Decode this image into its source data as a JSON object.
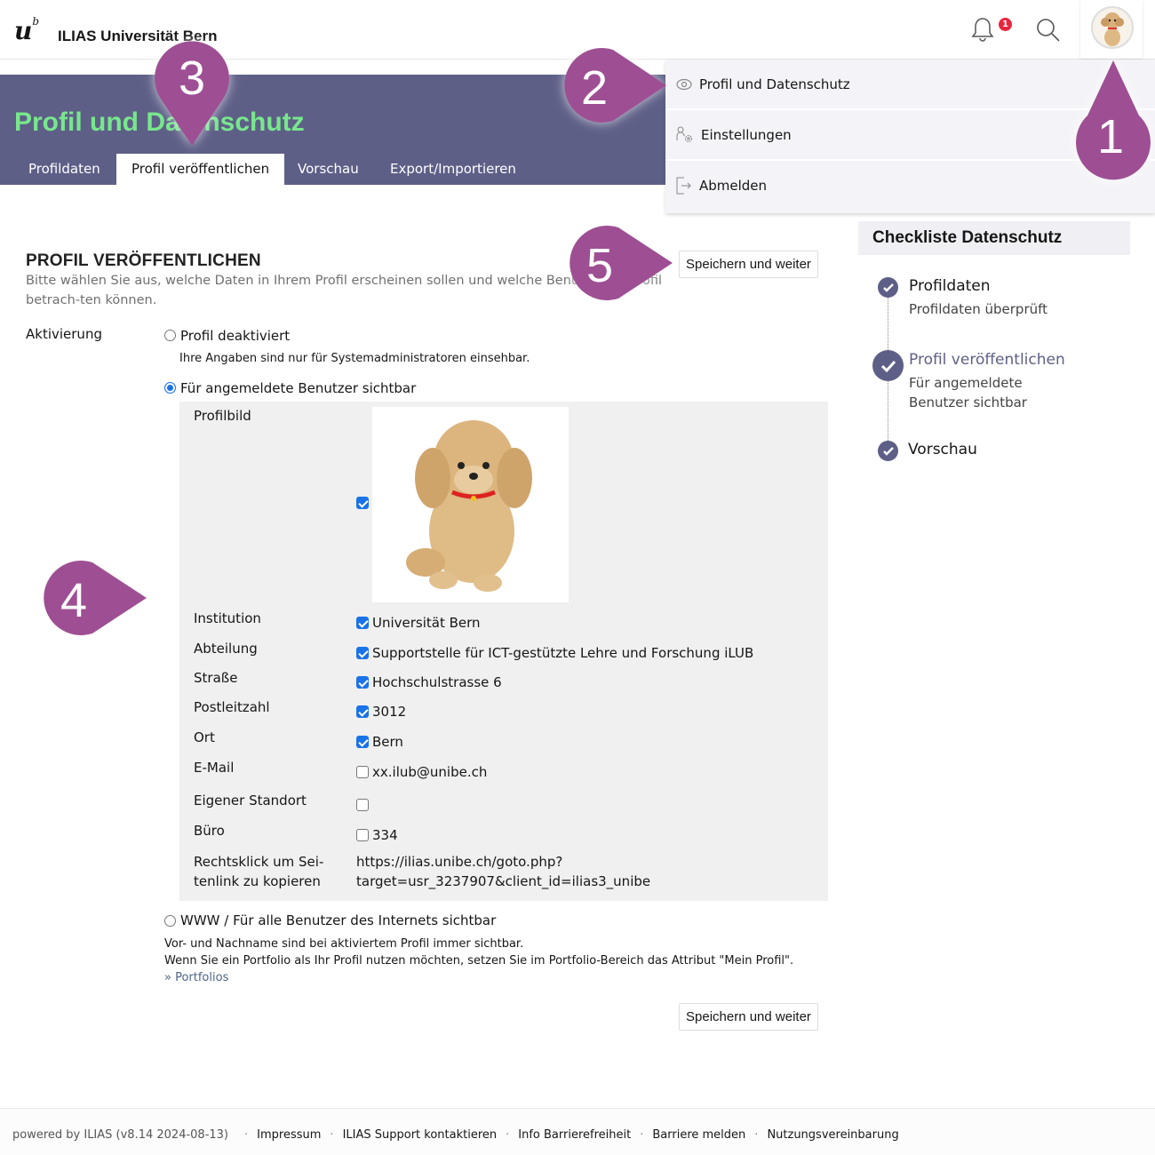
{
  "header": {
    "logo": "u",
    "logo_sup": "b",
    "site_title": "ILIAS Universität Bern",
    "notification_count": "1",
    "icons": [
      "bell-icon",
      "search-icon",
      "avatar"
    ]
  },
  "banner": {
    "title": "Profil und Datenschutz",
    "tabs": [
      {
        "label": "Profildaten"
      },
      {
        "label": "Profil veröffentlichen",
        "active": true
      },
      {
        "label": "Vorschau"
      },
      {
        "label": "Export/Importieren"
      }
    ]
  },
  "user_menu": {
    "items": [
      {
        "label": "Profil und Datenschutz",
        "icon": "eye-icon"
      },
      {
        "label": "Einstellungen",
        "icon": "user-settings-icon"
      },
      {
        "label": "Abmelden",
        "icon": "logout-icon"
      }
    ]
  },
  "form": {
    "title": "PROFIL VERÖFFENTLICHEN",
    "description": "Bitte wählen Sie aus, welche Daten in Ihrem Profil erscheinen sollen und welche Benutzer Ihr Profil betrach-ten können.",
    "save_label": "Speichern und weiter",
    "activation_label": "Aktivierung",
    "options": [
      {
        "label": "Profil deaktiviert",
        "info": "Ihre Angaben sind nur für Systemadministratoren einsehbar.",
        "selected": false
      },
      {
        "label": "Für angemeldete Benutzer sichtbar",
        "selected": true
      },
      {
        "label": "WWW / Für alle Benutzer des Internets sichtbar",
        "info": "Vor- und Nachname sind bei aktiviertem Profil immer sichtbar.",
        "info2": "Wenn Sie ein Portfolio als Ihr Profil nutzen möchten, setzen Sie im Portfolio-Bereich das Attribut \"Mein Profil\".",
        "link": "» Portfolios",
        "selected": false
      }
    ],
    "fields": [
      {
        "label": "Profilbild",
        "value": "",
        "checked": true
      },
      {
        "label": "Institution",
        "value": "Universität Bern",
        "checked": true
      },
      {
        "label": "Abteilung",
        "value": "Supportstelle für ICT-gestützte Lehre und Forschung iLUB",
        "checked": true
      },
      {
        "label": "Straße",
        "value": "Hochschulstrasse 6",
        "checked": true
      },
      {
        "label": "Postleitzahl",
        "value": "3012",
        "checked": true
      },
      {
        "label": "Ort",
        "value": "Bern",
        "checked": true
      },
      {
        "label": "E-Mail",
        "value": "xx.ilub@unibe.ch",
        "checked": false
      },
      {
        "label": "Eigener Standort",
        "value": "",
        "checked": false
      },
      {
        "label": "Büro",
        "value": "334",
        "checked": false
      }
    ],
    "link_label_1": "Rechtsklick um Sei-",
    "link_label_2": "tenlink zu kopieren",
    "link_value_1": "https://ilias.unibe.ch/goto.php?",
    "link_value_2": "target=usr_3237907&client_id=ilias3_unibe"
  },
  "checklist": {
    "title": "Checkliste Datenschutz",
    "items": [
      {
        "title": "Profildaten",
        "sub": "Profildaten überprüft",
        "status": "done"
      },
      {
        "title": "Profil veröffentlichen",
        "sub": "Für angemeldete Benutzer sichtbar",
        "status": "current"
      },
      {
        "title": "Vorschau",
        "sub": "",
        "status": "done"
      }
    ]
  },
  "footer": {
    "powered": "powered by ILIAS (v8.14 2024-08-13)",
    "links": [
      "Impressum",
      "ILIAS Support kontaktieren",
      "Info Barrierefreiheit",
      "Barriere melden",
      "Nutzungsvereinbarung"
    ]
  },
  "markers": [
    "1",
    "2",
    "3",
    "4",
    "5"
  ],
  "colors": {
    "banner": "#5e5f87",
    "title_green": "#78e68d",
    "marker": "#9e4f93",
    "checkbox": "#1a73e8"
  }
}
